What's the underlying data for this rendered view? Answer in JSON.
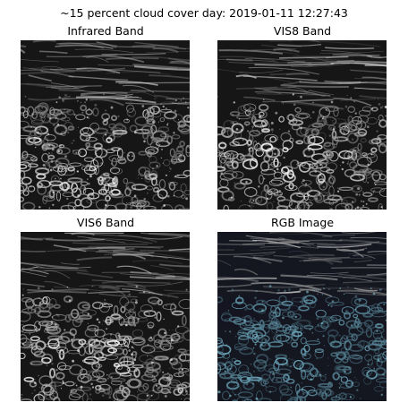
{
  "figure": {
    "title": "~15 percent cloud cover day: 2019-01-11 12:27:43"
  },
  "panels": [
    {
      "title": "Infrared Band",
      "mode": "gray"
    },
    {
      "title": "VIS8 Band",
      "mode": "gray"
    },
    {
      "title": "VIS6 Band",
      "mode": "gray"
    },
    {
      "title": "RGB Image",
      "mode": "rgb"
    }
  ],
  "colors": {
    "background": "#ffffff",
    "gray_dark": "#161616",
    "gray_light": "#d8d8d8",
    "rgb_dark": "#141620",
    "rgb_cyan": "#6fa9b8"
  }
}
